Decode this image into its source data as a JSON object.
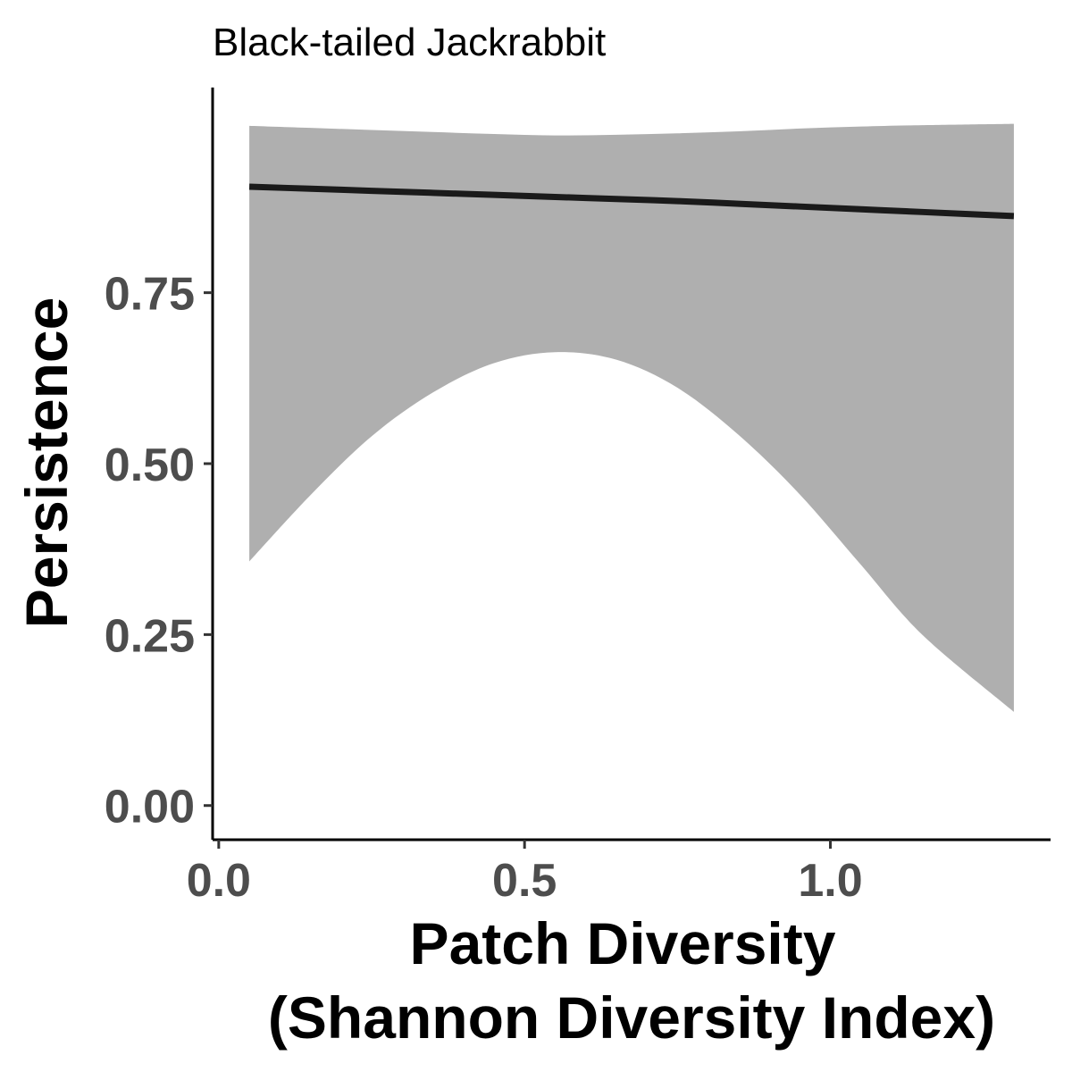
{
  "chart_data": {
    "type": "line",
    "title": "Black-tailed Jackrabbit",
    "xlabel_lines": [
      "Patch Diversity",
      "(Shannon Diversity Index)"
    ],
    "ylabel": "Persistence",
    "xlim": [
      -0.01,
      1.36
    ],
    "ylim": [
      -0.05,
      1.05
    ],
    "x_ticks": [
      {
        "value": 0.0,
        "label": "0.0"
      },
      {
        "value": 0.5,
        "label": "0.5"
      },
      {
        "value": 1.0,
        "label": "1.0"
      }
    ],
    "y_ticks": [
      {
        "value": 0.0,
        "label": "0.00"
      },
      {
        "value": 0.25,
        "label": "0.25"
      },
      {
        "value": 0.5,
        "label": "0.50"
      },
      {
        "value": 0.75,
        "label": "0.75"
      }
    ],
    "grid": false,
    "legend": "none",
    "series": [
      {
        "x": [
          0.05,
          0.15,
          0.25,
          0.35,
          0.45,
          0.55,
          0.65,
          0.75,
          0.85,
          0.95,
          1.05,
          1.15,
          1.3
        ],
        "y": [
          0.905,
          0.902,
          0.899,
          0.896,
          0.893,
          0.89,
          0.887,
          0.884,
          0.88,
          0.876,
          0.872,
          0.868,
          0.862
        ],
        "lower": [
          0.357,
          0.454,
          0.54,
          0.604,
          0.647,
          0.663,
          0.652,
          0.611,
          0.542,
          0.455,
          0.352,
          0.25,
          0.137
        ],
        "upper": [
          0.994,
          0.991,
          0.988,
          0.985,
          0.982,
          0.98,
          0.981,
          0.983,
          0.986,
          0.99,
          0.993,
          0.995,
          0.997
        ],
        "line_color": "#1a1a1a",
        "band_color": "#afafaf"
      }
    ]
  }
}
